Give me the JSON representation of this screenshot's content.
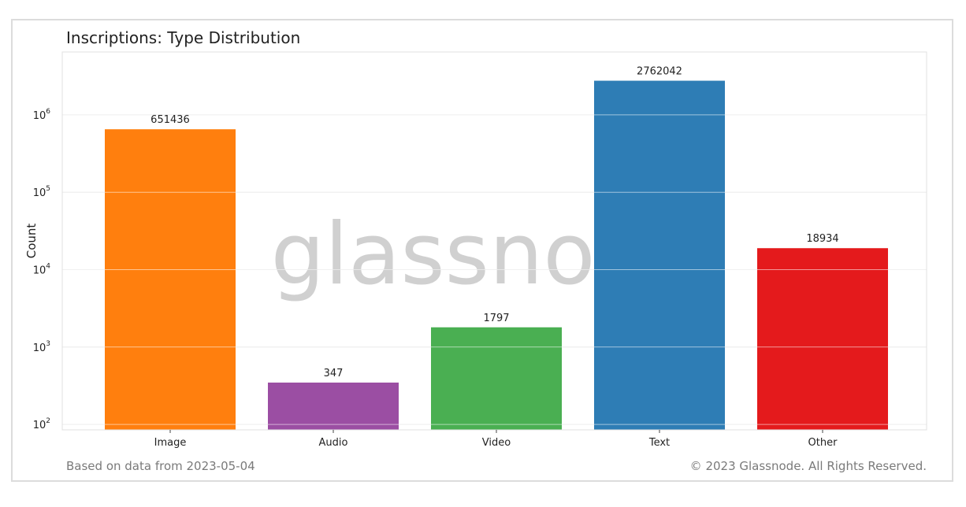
{
  "footer": {
    "source": "Based on data from 2023-05-04",
    "copyright": "© 2023 Glassnode. All Rights Reserved."
  },
  "watermark": "glassnode",
  "chart_data": {
    "type": "bar",
    "title": "Inscriptions: Type Distribution",
    "xlabel": "",
    "ylabel": "Count",
    "yscale": "log",
    "ylim": [
      85,
      6500000
    ],
    "yticks": [
      100,
      1000,
      10000,
      100000,
      1000000
    ],
    "grid": true,
    "categories": [
      "Image",
      "Audio",
      "Video",
      "Text",
      "Other"
    ],
    "values": [
      651436,
      347,
      1797,
      2762042,
      18934
    ],
    "colors": [
      "#ff7f0e",
      "#9b4ea3",
      "#4aaf52",
      "#2e7db5",
      "#e41a1c"
    ]
  }
}
